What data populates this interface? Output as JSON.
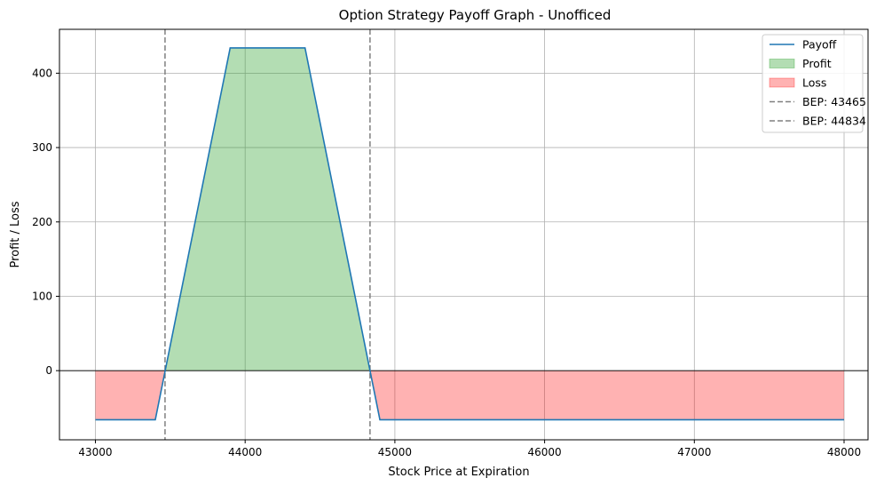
{
  "chart_data": {
    "type": "line",
    "title": "Option Strategy Payoff Graph - Unofficed",
    "xlabel": "Stock Price at Expiration",
    "ylabel": "Profit / Loss",
    "xlim": [
      42760,
      48160
    ],
    "ylim": [
      -93,
      459
    ],
    "xticks": [
      43000,
      44000,
      45000,
      46000,
      47000,
      48000
    ],
    "yticks": [
      0,
      100,
      200,
      300,
      400
    ],
    "grid": true,
    "legend_position": "top-right",
    "series": [
      {
        "name": "Payoff",
        "color": "#1f77b4",
        "x": [
          43000,
          43400,
          43900,
          44400,
          44900,
          48000
        ],
        "y": [
          -66,
          -66,
          434,
          434,
          -66,
          -66
        ]
      }
    ],
    "fills": [
      {
        "name": "Profit",
        "color": "#2ca02c",
        "opacity": 0.36
      },
      {
        "name": "Loss",
        "color": "#ff0000",
        "opacity": 0.3
      }
    ],
    "zero_line": {
      "y": 0,
      "color": "#000000"
    },
    "breakeven_lines": [
      {
        "name": "BEP: 43465",
        "x": 43465,
        "color": "#808080"
      },
      {
        "name": "BEP: 44834",
        "x": 44834,
        "color": "#808080"
      }
    ],
    "legend": [
      "Payoff",
      "Profit",
      "Loss",
      "BEP: 43465",
      "BEP: 44834"
    ]
  }
}
